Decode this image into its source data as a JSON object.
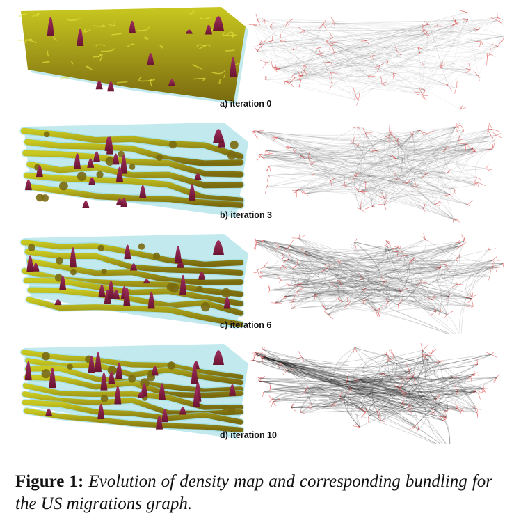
{
  "panels": [
    {
      "id": "a",
      "label": "a) iteration 0"
    },
    {
      "id": "b",
      "label": "b) iteration 3"
    },
    {
      "id": "c",
      "label": "c) iteration 6"
    },
    {
      "id": "d",
      "label": "d) iteration 10"
    }
  ],
  "caption": {
    "label": "Figure 1:",
    "text": "Evolution of density map and corresponding bundling for the US migrations graph."
  },
  "colors": {
    "density_base": "#7a6a10",
    "density_highlight": "#c8c820",
    "density_halo": "#8fd8e0",
    "density_peak": "#6a1430",
    "edge": "#111111",
    "node": "#e04040"
  }
}
